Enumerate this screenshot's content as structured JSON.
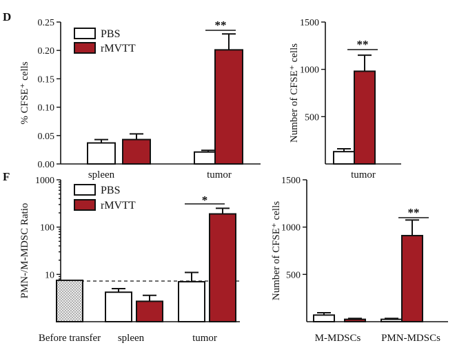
{
  "colors": {
    "pbs": "#ffffff",
    "rmvtt": "#a31d25",
    "before": "#e6e6e6"
  },
  "legend": {
    "pbs": "PBS",
    "rmvtt": "rMVTT"
  },
  "panels": {
    "d": "D",
    "f": "F"
  },
  "chart_data": [
    {
      "id": "d1",
      "type": "bar",
      "ylabel": "% CFSE⁺ cells",
      "ylim": [
        0,
        0.25
      ],
      "yticks": [
        "0.00",
        "0.05",
        "0.10",
        "0.15",
        "0.20",
        "0.25"
      ],
      "categories": [
        "spleen",
        "tumor"
      ],
      "series": [
        {
          "name": "PBS",
          "values": [
            0.037,
            0.021
          ],
          "errors": [
            0.006,
            0.003
          ]
        },
        {
          "name": "rMVTT",
          "values": [
            0.043,
            0.201
          ],
          "errors": [
            0.01,
            0.028
          ]
        }
      ],
      "annotations": [
        {
          "text": "**",
          "category": "tumor"
        }
      ]
    },
    {
      "id": "d2",
      "type": "bar",
      "ylabel": "Number of CFSE⁺ cells",
      "ylim": [
        0,
        1500
      ],
      "yticks": [
        "500",
        "1000",
        "1500"
      ],
      "categories": [
        "tumor"
      ],
      "series": [
        {
          "name": "PBS",
          "values": [
            130
          ],
          "errors": [
            30
          ]
        },
        {
          "name": "rMVTT",
          "values": [
            980
          ],
          "errors": [
            170
          ]
        }
      ],
      "annotations": [
        {
          "text": "**",
          "category": "tumor"
        }
      ]
    },
    {
      "id": "f1",
      "type": "bar",
      "ylabel": "PMN-/M-MDSC Ratio",
      "yscale": "log",
      "ylim": [
        1,
        1000
      ],
      "yticks": [
        "10",
        "100",
        "1000"
      ],
      "categories": [
        "Before transfer",
        "spleen",
        "tumor"
      ],
      "series": [
        {
          "name": "Before transfer",
          "values": [
            7.5,
            null,
            null
          ],
          "errors": [
            0,
            null,
            null
          ]
        },
        {
          "name": "PBS",
          "values": [
            null,
            4.2,
            7.0
          ],
          "errors": [
            null,
            0.8,
            4.0
          ]
        },
        {
          "name": "rMVTT",
          "values": [
            null,
            2.7,
            190
          ],
          "errors": [
            null,
            0.9,
            60
          ]
        }
      ],
      "reference_line": 7.5,
      "annotations": [
        {
          "text": "*",
          "category": "tumor"
        }
      ]
    },
    {
      "id": "f2",
      "type": "bar",
      "ylabel": "Number of CFSE⁺ cells",
      "ylim": [
        0,
        1500
      ],
      "yticks": [
        "500",
        "1000",
        "1500"
      ],
      "categories": [
        "M-MDSCs",
        "PMN-MDSCs"
      ],
      "series": [
        {
          "name": "PBS",
          "values": [
            70,
            25
          ],
          "errors": [
            25,
            10
          ]
        },
        {
          "name": "rMVTT",
          "values": [
            25,
            910
          ],
          "errors": [
            10,
            165
          ]
        }
      ],
      "annotations": [
        {
          "text": "**",
          "category": "PMN-MDSCs"
        }
      ]
    }
  ]
}
